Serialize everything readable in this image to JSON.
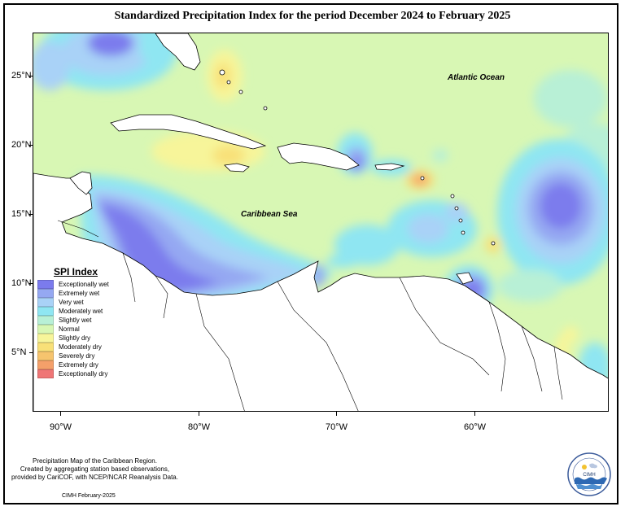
{
  "title": "Standardized Precipitation Index for the period December 2024 to February 2025",
  "map": {
    "lat_labels": [
      "25°N",
      "20°N",
      "15°N",
      "10°N",
      "5°N"
    ],
    "lon_labels": [
      "90°W",
      "80°W",
      "70°W",
      "60°W"
    ],
    "extent": {
      "lon_min": -92,
      "lon_max": -50,
      "lat_min": 0.5,
      "lat_max": 28
    },
    "ocean_labels": {
      "atlantic": "Atlantic Ocean",
      "caribbean": "Caribbean Sea"
    }
  },
  "legend": {
    "title": "SPI Index",
    "items": [
      {
        "label": "Exceptionally wet",
        "color": "#7b7bed"
      },
      {
        "label": "Extremely wet",
        "color": "#95a8f2"
      },
      {
        "label": "Very wet",
        "color": "#a9d2f7"
      },
      {
        "label": "Moderately wet",
        "color": "#8fe6f2"
      },
      {
        "label": "Slightly wet",
        "color": "#b8f0d6"
      },
      {
        "label": "Normal",
        "color": "#d8f7b4"
      },
      {
        "label": "Slightly dry",
        "color": "#f7f59a"
      },
      {
        "label": "Moderately dry",
        "color": "#f8e078"
      },
      {
        "label": "Severely dry",
        "color": "#f6c46e"
      },
      {
        "label": "Extremely dry",
        "color": "#f4a06a"
      },
      {
        "label": "Exceptionally dry",
        "color": "#ef7676"
      }
    ]
  },
  "footer": {
    "line1": "Precipitation Map of the Caribbean Region.",
    "line2": "Created by aggregating station based observations,",
    "line3": "provided by CariCOF, with NCEP/NCAR Reanalysis Data.",
    "date": "CIMH February-2025"
  },
  "logo": {
    "text": "CIMH"
  }
}
